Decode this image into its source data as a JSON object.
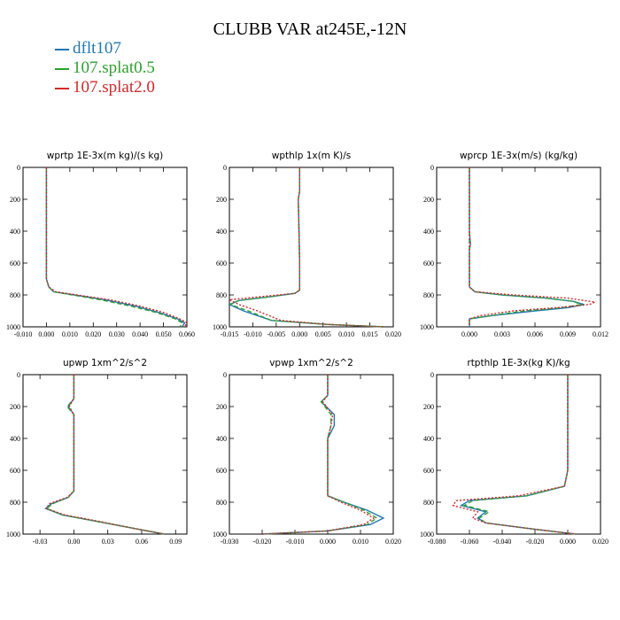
{
  "title": "CLUBB VAR at245E,-12N",
  "legend": [
    {
      "name": "dflt107",
      "color": "#1f77b4",
      "dash": "solid"
    },
    {
      "name": "107.splat0.5",
      "color": "#2ca02c",
      "dash": "dashed"
    },
    {
      "name": "107.splat2.0",
      "color": "#d62728",
      "dash": "dotted"
    }
  ],
  "chart_data": [
    {
      "type": "line",
      "title": "wprtp  1E-3x(m kg)/(s kg)",
      "xlim": [
        -0.01,
        0.06
      ],
      "ylim": [
        1000,
        0
      ],
      "xticks": [
        "-0.010",
        "0.000",
        "0.010",
        "0.020",
        "0.030",
        "0.040",
        "0.050",
        "0.060"
      ],
      "yticks": [
        "0",
        "200",
        "400",
        "600",
        "800",
        "1000"
      ],
      "series": [
        {
          "name": "dflt107",
          "x": [
            0,
            0,
            0,
            0,
            0,
            0.001,
            0.003,
            0.012,
            0.025,
            0.038,
            0.048,
            0.056,
            0.059,
            0.058
          ],
          "y": [
            0,
            200,
            400,
            500,
            700,
            750,
            780,
            800,
            830,
            870,
            910,
            950,
            975,
            1000
          ]
        },
        {
          "name": "107.splat0.5",
          "x": [
            0,
            0,
            0,
            0,
            0,
            0.001,
            0.003,
            0.011,
            0.023,
            0.036,
            0.047,
            0.055,
            0.058,
            0.057
          ],
          "y": [
            0,
            200,
            400,
            500,
            700,
            750,
            780,
            800,
            830,
            870,
            910,
            950,
            975,
            1000
          ]
        },
        {
          "name": "107.splat2.0",
          "x": [
            0,
            0,
            0,
            0,
            0,
            0.001,
            0.004,
            0.013,
            0.027,
            0.04,
            0.05,
            0.057,
            0.06,
            0.059
          ],
          "y": [
            0,
            200,
            400,
            500,
            700,
            750,
            780,
            800,
            830,
            870,
            910,
            950,
            975,
            1000
          ]
        }
      ]
    },
    {
      "type": "line",
      "title": "wpthlp  1x(m K)/s",
      "xlim": [
        -0.015,
        0.02
      ],
      "ylim": [
        1000,
        0
      ],
      "xticks": [
        "-0.015",
        "-0.010",
        "-0.005",
        "0.000",
        "0.005",
        "0.010",
        "0.015",
        "0.020"
      ],
      "yticks": [
        "0",
        "200",
        "400",
        "600",
        "800",
        "1000"
      ],
      "series": [
        {
          "name": "dflt107",
          "x": [
            0,
            0,
            -0.0003,
            -0.0002,
            0,
            0,
            -0.001,
            -0.006,
            -0.013,
            -0.015,
            -0.012,
            -0.006,
            0.006,
            0.018
          ],
          "y": [
            0,
            150,
            200,
            300,
            600,
            770,
            790,
            810,
            835,
            860,
            900,
            960,
            985,
            1000
          ]
        },
        {
          "name": "107.splat0.5",
          "x": [
            0,
            0,
            -0.0003,
            -0.0002,
            0,
            0,
            -0.001,
            -0.006,
            -0.013,
            -0.0148,
            -0.011,
            -0.006,
            0.006,
            0.018
          ],
          "y": [
            0,
            150,
            200,
            300,
            600,
            770,
            790,
            810,
            835,
            860,
            900,
            960,
            985,
            1000
          ]
        },
        {
          "name": "107.splat2.0",
          "x": [
            0,
            0,
            -0.0003,
            -0.0002,
            0,
            0,
            -0.001,
            -0.008,
            -0.015,
            -0.013,
            -0.009,
            -0.004,
            0.006,
            0.018
          ],
          "y": [
            0,
            150,
            200,
            300,
            600,
            770,
            790,
            810,
            830,
            860,
            900,
            960,
            985,
            1000
          ]
        }
      ]
    },
    {
      "type": "line",
      "title": "wprcp  1E-3x(m/s) (kg/kg)",
      "xlim": [
        -0.003,
        0.012
      ],
      "ylim": [
        1000,
        0
      ],
      "xticks": [
        "0.000",
        "0.003",
        "0.006",
        "0.009",
        "0.012"
      ],
      "yticks": [
        "0",
        "200",
        "400",
        "600",
        "800",
        "1000"
      ],
      "series": [
        {
          "name": "dflt107",
          "x": [
            0,
            0,
            0.0001,
            0,
            0,
            0.0005,
            0.003,
            0.007,
            0.0095,
            0.0105,
            0.009,
            0.006,
            0.002,
            0,
            0
          ],
          "y": [
            0,
            400,
            480,
            520,
            750,
            780,
            800,
            820,
            840,
            860,
            880,
            900,
            930,
            950,
            1000
          ]
        },
        {
          "name": "107.splat0.5",
          "x": [
            0,
            0,
            0,
            0,
            0,
            0.0005,
            0.003,
            0.007,
            0.0095,
            0.0102,
            0.0085,
            0.005,
            0.002,
            0,
            0
          ],
          "y": [
            0,
            400,
            480,
            520,
            750,
            780,
            800,
            820,
            840,
            860,
            880,
            900,
            930,
            950,
            1000
          ]
        },
        {
          "name": "107.splat2.0",
          "x": [
            0,
            0,
            0,
            0,
            0,
            0.0005,
            0.004,
            0.009,
            0.0115,
            0.011,
            0.008,
            0.004,
            0.001,
            0,
            0
          ],
          "y": [
            0,
            400,
            480,
            520,
            750,
            780,
            800,
            820,
            845,
            860,
            880,
            900,
            930,
            950,
            1000
          ]
        }
      ]
    },
    {
      "type": "line",
      "title": "upwp  1xm^2/s^2",
      "xlim": [
        -0.045,
        0.1
      ],
      "ylim": [
        1000,
        0
      ],
      "xticks": [
        "-0.03",
        "0.00",
        "0.03",
        "0.06",
        "0.09"
      ],
      "yticks": [
        "0",
        "200",
        "400",
        "600",
        "800",
        "1000"
      ],
      "series": [
        {
          "name": "dflt107",
          "x": [
            0,
            0,
            -0.005,
            0,
            0,
            0,
            -0.005,
            -0.02,
            -0.025,
            -0.01,
            0.02,
            0.05,
            0.08
          ],
          "y": [
            0,
            150,
            200,
            250,
            500,
            730,
            770,
            810,
            840,
            880,
            920,
            960,
            1000
          ]
        },
        {
          "name": "107.splat0.5",
          "x": [
            0,
            0,
            -0.006,
            0,
            0,
            0,
            -0.005,
            -0.019,
            -0.024,
            -0.01,
            0.02,
            0.05,
            0.08
          ],
          "y": [
            0,
            150,
            200,
            250,
            500,
            730,
            770,
            810,
            840,
            880,
            920,
            960,
            1000
          ]
        },
        {
          "name": "107.splat2.0",
          "x": [
            0,
            0,
            -0.004,
            0,
            0,
            0,
            -0.006,
            -0.022,
            -0.024,
            -0.008,
            0.022,
            0.05,
            0.08
          ],
          "y": [
            0,
            150,
            200,
            250,
            500,
            730,
            770,
            810,
            840,
            880,
            920,
            960,
            1000
          ]
        }
      ]
    },
    {
      "type": "line",
      "title": "vpwp  1xm^2/s^2",
      "xlim": [
        -0.03,
        0.02
      ],
      "ylim": [
        1000,
        0
      ],
      "xticks": [
        "-0.030",
        "-0.020",
        "-0.010",
        "0.000",
        "0.010",
        "0.020"
      ],
      "yticks": [
        "0",
        "200",
        "400",
        "600",
        "800",
        "1000"
      ],
      "series": [
        {
          "name": "dflt107",
          "x": [
            0,
            0,
            -0.002,
            0.002,
            0.002,
            0,
            0,
            0,
            0.005,
            0.012,
            0.017,
            0.013,
            0,
            -0.02
          ],
          "y": [
            0,
            130,
            170,
            250,
            320,
            400,
            600,
            760,
            800,
            850,
            900,
            940,
            980,
            1000
          ]
        },
        {
          "name": "107.splat0.5",
          "x": [
            0,
            0,
            -0.002,
            0.001,
            0.001,
            0,
            0,
            0,
            0.005,
            0.011,
            0.015,
            0.012,
            0,
            -0.02
          ],
          "y": [
            0,
            130,
            170,
            250,
            320,
            400,
            600,
            760,
            800,
            850,
            900,
            940,
            980,
            1000
          ]
        },
        {
          "name": "107.splat2.0",
          "x": [
            0,
            0,
            -0.0015,
            0.0015,
            0.001,
            0,
            0,
            0,
            0.004,
            0.01,
            0.014,
            0.011,
            0,
            -0.02
          ],
          "y": [
            0,
            130,
            170,
            250,
            320,
            400,
            600,
            760,
            800,
            850,
            900,
            940,
            980,
            1000
          ]
        }
      ]
    },
    {
      "type": "line",
      "title": "rtpthlp  1E-3x(kg K)/kg",
      "xlim": [
        -0.08,
        0.02
      ],
      "ylim": [
        1000,
        0
      ],
      "xticks": [
        "-0.080",
        "-0.060",
        "-0.040",
        "-0.020",
        "0.000",
        "0.020"
      ],
      "yticks": [
        "0",
        "200",
        "400",
        "600",
        "800",
        "1000"
      ],
      "series": [
        {
          "name": "dflt107",
          "x": [
            0,
            0,
            0,
            -0.002,
            -0.025,
            -0.06,
            -0.065,
            -0.05,
            -0.055,
            -0.05,
            -0.02,
            0.005
          ],
          "y": [
            0,
            300,
            600,
            700,
            760,
            790,
            820,
            860,
            900,
            930,
            970,
            1000
          ]
        },
        {
          "name": "107.splat0.5",
          "x": [
            0,
            0,
            0,
            -0.002,
            -0.025,
            -0.058,
            -0.063,
            -0.048,
            -0.054,
            -0.05,
            -0.02,
            0.005
          ],
          "y": [
            0,
            300,
            600,
            700,
            760,
            790,
            820,
            860,
            900,
            930,
            970,
            1000
          ]
        },
        {
          "name": "107.splat2.0",
          "x": [
            0,
            0,
            0,
            -0.002,
            -0.03,
            -0.068,
            -0.07,
            -0.055,
            -0.058,
            -0.05,
            -0.02,
            0.005
          ],
          "y": [
            0,
            300,
            600,
            700,
            760,
            790,
            820,
            860,
            900,
            930,
            970,
            1000
          ]
        }
      ]
    }
  ]
}
